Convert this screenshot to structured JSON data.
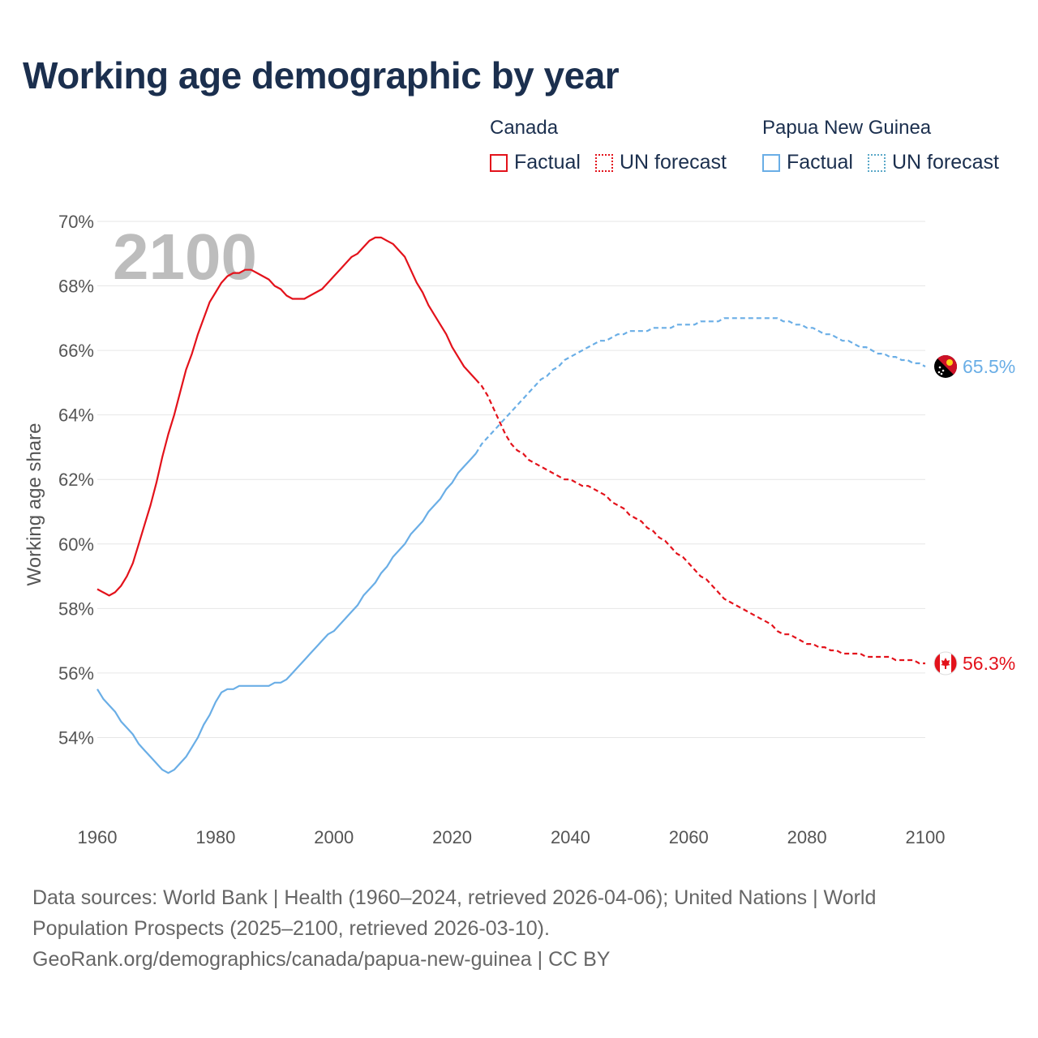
{
  "title": "Working age demographic by year",
  "legend": {
    "groups": [
      {
        "name": "Canada",
        "factual": "Factual",
        "forecast": "UN forecast"
      },
      {
        "name": "Papua New Guinea",
        "factual": "Factual",
        "forecast": "UN forecast"
      }
    ]
  },
  "colors": {
    "canada": "#e3121b",
    "png": "#6aaee6",
    "grid": "#e6e6e6"
  },
  "footer": {
    "line1": "Data sources: World Bank | Health (1960–2024, retrieved 2026-04-06); United Nations | World",
    "line2": "Population Prospects (2025–2100, retrieved 2026-03-10).",
    "line3": "GeoRank.org/demographics/canada/papua-new-guinea | CC BY"
  },
  "chart_data": {
    "type": "line",
    "title": "Working age demographic by year",
    "year_label": "2100",
    "xlabel": "",
    "ylabel": "Working age share",
    "xlim": [
      1960,
      2100
    ],
    "ylim": [
      52,
      70
    ],
    "x_ticks": [
      1960,
      1980,
      2000,
      2020,
      2040,
      2060,
      2080,
      2100
    ],
    "y_ticks": [
      54,
      56,
      58,
      60,
      62,
      64,
      66,
      68,
      70
    ],
    "y_tick_labels": [
      "54%",
      "56%",
      "58%",
      "60%",
      "62%",
      "64%",
      "66%",
      "68%",
      "70%"
    ],
    "factual_until": 2024,
    "series": [
      {
        "name": "Canada",
        "end_label": "56.3%",
        "flag": "canada-flag-icon",
        "points": [
          [
            1960,
            58.6
          ],
          [
            1962,
            58.4
          ],
          [
            1963,
            58.5
          ],
          [
            1964,
            58.7
          ],
          [
            1965,
            59.0
          ],
          [
            1966,
            59.4
          ],
          [
            1967,
            60.0
          ],
          [
            1968,
            60.6
          ],
          [
            1969,
            61.2
          ],
          [
            1970,
            61.9
          ],
          [
            1971,
            62.7
          ],
          [
            1972,
            63.4
          ],
          [
            1973,
            64.0
          ],
          [
            1974,
            64.7
          ],
          [
            1975,
            65.4
          ],
          [
            1976,
            65.9
          ],
          [
            1977,
            66.5
          ],
          [
            1978,
            67.0
          ],
          [
            1979,
            67.5
          ],
          [
            1980,
            67.8
          ],
          [
            1981,
            68.1
          ],
          [
            1982,
            68.3
          ],
          [
            1983,
            68.4
          ],
          [
            1984,
            68.4
          ],
          [
            1985,
            68.5
          ],
          [
            1986,
            68.5
          ],
          [
            1987,
            68.4
          ],
          [
            1988,
            68.3
          ],
          [
            1989,
            68.2
          ],
          [
            1990,
            68.0
          ],
          [
            1991,
            67.9
          ],
          [
            1992,
            67.7
          ],
          [
            1993,
            67.6
          ],
          [
            1994,
            67.6
          ],
          [
            1995,
            67.6
          ],
          [
            1996,
            67.7
          ],
          [
            1997,
            67.8
          ],
          [
            1998,
            67.9
          ],
          [
            1999,
            68.1
          ],
          [
            2000,
            68.3
          ],
          [
            2001,
            68.5
          ],
          [
            2002,
            68.7
          ],
          [
            2003,
            68.9
          ],
          [
            2004,
            69.0
          ],
          [
            2005,
            69.2
          ],
          [
            2006,
            69.4
          ],
          [
            2007,
            69.5
          ],
          [
            2008,
            69.5
          ],
          [
            2009,
            69.4
          ],
          [
            2010,
            69.3
          ],
          [
            2011,
            69.1
          ],
          [
            2012,
            68.9
          ],
          [
            2013,
            68.5
          ],
          [
            2014,
            68.1
          ],
          [
            2015,
            67.8
          ],
          [
            2016,
            67.4
          ],
          [
            2017,
            67.1
          ],
          [
            2018,
            66.8
          ],
          [
            2019,
            66.5
          ],
          [
            2020,
            66.1
          ],
          [
            2021,
            65.8
          ],
          [
            2022,
            65.5
          ],
          [
            2023,
            65.3
          ],
          [
            2024,
            65.1
          ],
          [
            2025,
            64.9
          ],
          [
            2026,
            64.6
          ],
          [
            2027,
            64.2
          ],
          [
            2028,
            63.8
          ],
          [
            2029,
            63.4
          ],
          [
            2030,
            63.1
          ],
          [
            2031,
            62.9
          ],
          [
            2032,
            62.8
          ],
          [
            2033,
            62.6
          ],
          [
            2034,
            62.5
          ],
          [
            2035,
            62.4
          ],
          [
            2036,
            62.3
          ],
          [
            2037,
            62.2
          ],
          [
            2038,
            62.1
          ],
          [
            2039,
            62.0
          ],
          [
            2040,
            62.0
          ],
          [
            2041,
            61.9
          ],
          [
            2042,
            61.8
          ],
          [
            2043,
            61.8
          ],
          [
            2044,
            61.7
          ],
          [
            2045,
            61.6
          ],
          [
            2046,
            61.5
          ],
          [
            2047,
            61.3
          ],
          [
            2048,
            61.2
          ],
          [
            2049,
            61.1
          ],
          [
            2050,
            60.9
          ],
          [
            2051,
            60.8
          ],
          [
            2052,
            60.7
          ],
          [
            2053,
            60.5
          ],
          [
            2054,
            60.4
          ],
          [
            2055,
            60.2
          ],
          [
            2056,
            60.1
          ],
          [
            2057,
            59.9
          ],
          [
            2058,
            59.7
          ],
          [
            2059,
            59.6
          ],
          [
            2060,
            59.4
          ],
          [
            2061,
            59.2
          ],
          [
            2062,
            59.0
          ],
          [
            2063,
            58.9
          ],
          [
            2064,
            58.7
          ],
          [
            2065,
            58.5
          ],
          [
            2066,
            58.3
          ],
          [
            2067,
            58.2
          ],
          [
            2068,
            58.1
          ],
          [
            2069,
            58.0
          ],
          [
            2070,
            57.9
          ],
          [
            2071,
            57.8
          ],
          [
            2072,
            57.7
          ],
          [
            2073,
            57.6
          ],
          [
            2074,
            57.5
          ],
          [
            2075,
            57.3
          ],
          [
            2076,
            57.2
          ],
          [
            2077,
            57.2
          ],
          [
            2078,
            57.1
          ],
          [
            2079,
            57.0
          ],
          [
            2080,
            56.9
          ],
          [
            2081,
            56.9
          ],
          [
            2082,
            56.8
          ],
          [
            2083,
            56.8
          ],
          [
            2084,
            56.7
          ],
          [
            2085,
            56.7
          ],
          [
            2086,
            56.6
          ],
          [
            2087,
            56.6
          ],
          [
            2088,
            56.6
          ],
          [
            2089,
            56.6
          ],
          [
            2090,
            56.5
          ],
          [
            2091,
            56.5
          ],
          [
            2092,
            56.5
          ],
          [
            2093,
            56.5
          ],
          [
            2094,
            56.5
          ],
          [
            2095,
            56.4
          ],
          [
            2096,
            56.4
          ],
          [
            2097,
            56.4
          ],
          [
            2098,
            56.4
          ],
          [
            2099,
            56.3
          ],
          [
            2100,
            56.3
          ]
        ]
      },
      {
        "name": "Papua New Guinea",
        "end_label": "65.5%",
        "flag": "png-flag-icon",
        "points": [
          [
            1960,
            55.5
          ],
          [
            1961,
            55.2
          ],
          [
            1962,
            55.0
          ],
          [
            1963,
            54.8
          ],
          [
            1964,
            54.5
          ],
          [
            1965,
            54.3
          ],
          [
            1966,
            54.1
          ],
          [
            1967,
            53.8
          ],
          [
            1968,
            53.6
          ],
          [
            1969,
            53.4
          ],
          [
            1970,
            53.2
          ],
          [
            1971,
            53.0
          ],
          [
            1972,
            52.9
          ],
          [
            1973,
            53.0
          ],
          [
            1974,
            53.2
          ],
          [
            1975,
            53.4
          ],
          [
            1976,
            53.7
          ],
          [
            1977,
            54.0
          ],
          [
            1978,
            54.4
          ],
          [
            1979,
            54.7
          ],
          [
            1980,
            55.1
          ],
          [
            1981,
            55.4
          ],
          [
            1982,
            55.5
          ],
          [
            1983,
            55.5
          ],
          [
            1984,
            55.6
          ],
          [
            1985,
            55.6
          ],
          [
            1986,
            55.6
          ],
          [
            1987,
            55.6
          ],
          [
            1988,
            55.6
          ],
          [
            1989,
            55.6
          ],
          [
            1990,
            55.7
          ],
          [
            1991,
            55.7
          ],
          [
            1992,
            55.8
          ],
          [
            1993,
            56.0
          ],
          [
            1994,
            56.2
          ],
          [
            1995,
            56.4
          ],
          [
            1996,
            56.6
          ],
          [
            1997,
            56.8
          ],
          [
            1998,
            57.0
          ],
          [
            1999,
            57.2
          ],
          [
            2000,
            57.3
          ],
          [
            2001,
            57.5
          ],
          [
            2002,
            57.7
          ],
          [
            2003,
            57.9
          ],
          [
            2004,
            58.1
          ],
          [
            2005,
            58.4
          ],
          [
            2006,
            58.6
          ],
          [
            2007,
            58.8
          ],
          [
            2008,
            59.1
          ],
          [
            2009,
            59.3
          ],
          [
            2010,
            59.6
          ],
          [
            2011,
            59.8
          ],
          [
            2012,
            60.0
          ],
          [
            2013,
            60.3
          ],
          [
            2014,
            60.5
          ],
          [
            2015,
            60.7
          ],
          [
            2016,
            61.0
          ],
          [
            2017,
            61.2
          ],
          [
            2018,
            61.4
          ],
          [
            2019,
            61.7
          ],
          [
            2020,
            61.9
          ],
          [
            2021,
            62.2
          ],
          [
            2022,
            62.4
          ],
          [
            2023,
            62.6
          ],
          [
            2024,
            62.8
          ],
          [
            2025,
            63.1
          ],
          [
            2026,
            63.3
          ],
          [
            2027,
            63.5
          ],
          [
            2028,
            63.7
          ],
          [
            2029,
            63.9
          ],
          [
            2030,
            64.1
          ],
          [
            2031,
            64.3
          ],
          [
            2032,
            64.5
          ],
          [
            2033,
            64.7
          ],
          [
            2034,
            64.9
          ],
          [
            2035,
            65.1
          ],
          [
            2036,
            65.2
          ],
          [
            2037,
            65.4
          ],
          [
            2038,
            65.5
          ],
          [
            2039,
            65.7
          ],
          [
            2040,
            65.8
          ],
          [
            2041,
            65.9
          ],
          [
            2042,
            66.0
          ],
          [
            2043,
            66.1
          ],
          [
            2044,
            66.2
          ],
          [
            2045,
            66.3
          ],
          [
            2046,
            66.3
          ],
          [
            2047,
            66.4
          ],
          [
            2048,
            66.5
          ],
          [
            2049,
            66.5
          ],
          [
            2050,
            66.6
          ],
          [
            2051,
            66.6
          ],
          [
            2052,
            66.6
          ],
          [
            2053,
            66.6
          ],
          [
            2054,
            66.7
          ],
          [
            2055,
            66.7
          ],
          [
            2056,
            66.7
          ],
          [
            2057,
            66.7
          ],
          [
            2058,
            66.8
          ],
          [
            2059,
            66.8
          ],
          [
            2060,
            66.8
          ],
          [
            2061,
            66.8
          ],
          [
            2062,
            66.9
          ],
          [
            2063,
            66.9
          ],
          [
            2064,
            66.9
          ],
          [
            2065,
            66.9
          ],
          [
            2066,
            67.0
          ],
          [
            2067,
            67.0
          ],
          [
            2068,
            67.0
          ],
          [
            2069,
            67.0
          ],
          [
            2070,
            67.0
          ],
          [
            2071,
            67.0
          ],
          [
            2072,
            67.0
          ],
          [
            2073,
            67.0
          ],
          [
            2074,
            67.0
          ],
          [
            2075,
            67.0
          ],
          [
            2076,
            66.9
          ],
          [
            2077,
            66.9
          ],
          [
            2078,
            66.8
          ],
          [
            2079,
            66.8
          ],
          [
            2080,
            66.7
          ],
          [
            2081,
            66.7
          ],
          [
            2082,
            66.6
          ],
          [
            2083,
            66.5
          ],
          [
            2084,
            66.5
          ],
          [
            2085,
            66.4
          ],
          [
            2086,
            66.3
          ],
          [
            2087,
            66.3
          ],
          [
            2088,
            66.2
          ],
          [
            2089,
            66.1
          ],
          [
            2090,
            66.1
          ],
          [
            2091,
            66.0
          ],
          [
            2092,
            65.9
          ],
          [
            2093,
            65.9
          ],
          [
            2094,
            65.8
          ],
          [
            2095,
            65.8
          ],
          [
            2096,
            65.7
          ],
          [
            2097,
            65.7
          ],
          [
            2098,
            65.6
          ],
          [
            2099,
            65.6
          ],
          [
            2100,
            65.5
          ]
        ]
      }
    ]
  }
}
